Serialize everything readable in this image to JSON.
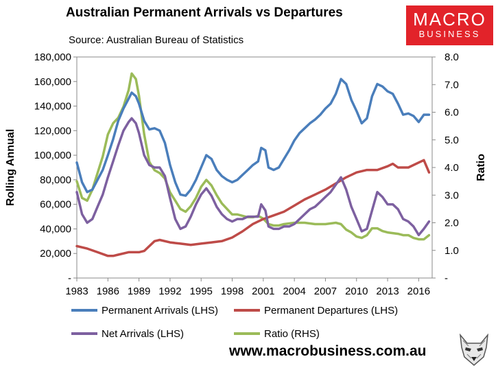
{
  "header": {
    "title": "Australian Permanent Arrivals vs Departures",
    "subtitle": "Source: Australian Bureau of Statistics"
  },
  "logo": {
    "line1": "MACRO",
    "line2": "BUSINESS",
    "color": "#e2232a"
  },
  "footer": {
    "url": "www.macrobusiness.com.au",
    "wolf_icon": "wolf-head-icon"
  },
  "chart_data": {
    "type": "line",
    "title": "Australian Permanent Arrivals vs Departures",
    "ylabel": "Rolling Annual",
    "y2label": "Ratio",
    "xlim": [
      1983,
      2017.3
    ],
    "ylim": [
      0,
      180000
    ],
    "y2lim": [
      0,
      8
    ],
    "x_ticks": [
      "1983",
      "1986",
      "1989",
      "1992",
      "1995",
      "1998",
      "2001",
      "2004",
      "2007",
      "2010",
      "2013",
      "2016"
    ],
    "y_ticks": [
      "-",
      "20,000",
      "40,000",
      "60,000",
      "80,000",
      "100,000",
      "120,000",
      "140,000",
      "160,000",
      "180,000"
    ],
    "y2_ticks": [
      "-",
      "1.0",
      "2.0",
      "3.0",
      "4.0",
      "5.0",
      "6.0",
      "7.0",
      "8.0"
    ],
    "grid": false,
    "legend_position": "bottom",
    "series": [
      {
        "name": "Permanent Arrivals (LHS)",
        "axis": "left",
        "color": "#4a7ebb",
        "x": [
          1983.0,
          1983.5,
          1984.0,
          1984.5,
          1985.0,
          1985.5,
          1986.0,
          1986.5,
          1987.0,
          1987.5,
          1988.0,
          1988.3,
          1988.7,
          1989.0,
          1989.5,
          1990.0,
          1990.5,
          1991.0,
          1991.5,
          1992.0,
          1992.5,
          1993.0,
          1993.5,
          1994.0,
          1994.5,
          1995.0,
          1995.5,
          1996.0,
          1996.5,
          1997.0,
          1997.5,
          1998.0,
          1998.5,
          1999.0,
          1999.5,
          2000.0,
          2000.5,
          2000.8,
          2001.2,
          2001.5,
          2002.0,
          2002.5,
          2003.0,
          2003.5,
          2004.0,
          2004.5,
          2005.0,
          2005.5,
          2006.0,
          2006.5,
          2007.0,
          2007.5,
          2008.0,
          2008.5,
          2009.0,
          2009.5,
          2010.0,
          2010.5,
          2011.0,
          2011.5,
          2012.0,
          2012.5,
          2013.0,
          2013.5,
          2014.0,
          2014.5,
          2015.0,
          2015.5,
          2016.0,
          2016.5,
          2017.0
        ],
        "values": [
          94000,
          78000,
          70000,
          72000,
          80000,
          88000,
          100000,
          113000,
          128000,
          138000,
          146000,
          151000,
          148000,
          142000,
          128000,
          121000,
          122000,
          120000,
          110000,
          92000,
          78000,
          68000,
          67000,
          72000,
          80000,
          90000,
          100000,
          97000,
          88000,
          83000,
          80000,
          78000,
          80000,
          84000,
          88000,
          92000,
          95000,
          106000,
          104000,
          90000,
          88000,
          90000,
          97000,
          104000,
          112000,
          118000,
          122000,
          126000,
          129000,
          133000,
          138000,
          142000,
          150000,
          162000,
          158000,
          145000,
          136000,
          126000,
          130000,
          148000,
          158000,
          156000,
          152000,
          150000,
          142000,
          133000,
          134000,
          132000,
          127000,
          133000,
          133000
        ]
      },
      {
        "name": "Permanent Departures (LHS)",
        "axis": "left",
        "color": "#be4b48",
        "x": [
          1983.0,
          1984.0,
          1985.0,
          1986.0,
          1986.5,
          1987.0,
          1988.0,
          1989.0,
          1989.5,
          1990.0,
          1990.5,
          1991.0,
          1992.0,
          1993.0,
          1994.0,
          1995.0,
          1996.0,
          1997.0,
          1998.0,
          1999.0,
          2000.0,
          2001.0,
          2002.0,
          2003.0,
          2004.0,
          2005.0,
          2006.0,
          2007.0,
          2008.0,
          2009.0,
          2010.0,
          2011.0,
          2012.0,
          2013.0,
          2013.5,
          2014.0,
          2015.0,
          2016.0,
          2016.5,
          2017.0
        ],
        "values": [
          26000,
          24000,
          21000,
          18000,
          18000,
          19000,
          21000,
          21000,
          22000,
          26000,
          30000,
          31000,
          29000,
          28000,
          27000,
          28000,
          29000,
          30000,
          33000,
          38000,
          44000,
          48000,
          51000,
          54000,
          59000,
          64000,
          68000,
          72000,
          77000,
          82000,
          86000,
          88000,
          88000,
          91000,
          93000,
          90000,
          90000,
          94000,
          96000,
          86000
        ]
      },
      {
        "name": "Net Arrivals (LHS)",
        "axis": "left",
        "color": "#7d60a0",
        "x": [
          1983.0,
          1983.5,
          1984.0,
          1984.5,
          1985.0,
          1985.5,
          1986.0,
          1986.5,
          1987.0,
          1987.5,
          1988.0,
          1988.3,
          1988.7,
          1989.0,
          1989.5,
          1990.0,
          1990.5,
          1991.0,
          1991.5,
          1992.0,
          1992.5,
          1993.0,
          1993.5,
          1994.0,
          1994.5,
          1995.0,
          1995.5,
          1996.0,
          1996.5,
          1997.0,
          1997.5,
          1998.0,
          1998.5,
          1999.0,
          1999.5,
          2000.0,
          2000.5,
          2000.8,
          2001.2,
          2001.5,
          2002.0,
          2002.5,
          2003.0,
          2003.5,
          2004.0,
          2004.5,
          2005.0,
          2005.5,
          2006.0,
          2006.5,
          2007.0,
          2007.5,
          2008.0,
          2008.5,
          2009.0,
          2009.5,
          2010.0,
          2010.5,
          2011.0,
          2011.5,
          2012.0,
          2012.5,
          2013.0,
          2013.5,
          2014.0,
          2014.5,
          2015.0,
          2015.5,
          2016.0,
          2016.5,
          2017.0
        ],
        "values": [
          70000,
          52000,
          45000,
          48000,
          58000,
          68000,
          82000,
          95000,
          108000,
          120000,
          127000,
          130000,
          126000,
          118000,
          100000,
          92000,
          90000,
          90000,
          83000,
          65000,
          48000,
          40000,
          42000,
          50000,
          60000,
          68000,
          73000,
          67000,
          58000,
          52000,
          48000,
          46000,
          48000,
          48000,
          50000,
          50000,
          50000,
          60000,
          55000,
          42000,
          40000,
          40000,
          42000,
          42000,
          44000,
          48000,
          52000,
          56000,
          58000,
          62000,
          66000,
          70000,
          76000,
          82000,
          72000,
          58000,
          48000,
          38000,
          40000,
          55000,
          70000,
          66000,
          60000,
          60000,
          56000,
          48000,
          46000,
          42000,
          35000,
          40000,
          46000
        ]
      },
      {
        "name": "Ratio (RHS)",
        "axis": "right",
        "color": "#9bbb59",
        "x": [
          1983.0,
          1983.5,
          1984.0,
          1984.5,
          1985.0,
          1985.5,
          1986.0,
          1986.5,
          1987.0,
          1987.5,
          1988.0,
          1988.3,
          1988.7,
          1989.0,
          1989.5,
          1990.0,
          1990.5,
          1991.0,
          1991.5,
          1992.0,
          1992.5,
          1993.0,
          1993.5,
          1994.0,
          1994.5,
          1995.0,
          1995.5,
          1996.0,
          1996.5,
          1997.0,
          1997.5,
          1998.0,
          1998.5,
          1999.0,
          1999.5,
          2000.0,
          2000.5,
          2001.0,
          2001.5,
          2002.0,
          2002.5,
          2003.0,
          2004.0,
          2005.0,
          2006.0,
          2007.0,
          2008.0,
          2008.5,
          2009.0,
          2009.5,
          2010.0,
          2010.5,
          2011.0,
          2011.5,
          2012.0,
          2012.5,
          2013.0,
          2014.0,
          2014.5,
          2015.0,
          2015.5,
          2016.0,
          2016.5,
          2017.0
        ],
        "values": [
          3.5,
          2.9,
          2.8,
          3.2,
          3.8,
          4.4,
          5.2,
          5.6,
          5.8,
          6.2,
          6.8,
          7.4,
          7.2,
          6.6,
          5.2,
          4.2,
          3.9,
          3.8,
          3.6,
          3.1,
          2.8,
          2.5,
          2.4,
          2.6,
          2.9,
          3.3,
          3.55,
          3.35,
          3.0,
          2.7,
          2.5,
          2.3,
          2.3,
          2.25,
          2.2,
          2.2,
          2.25,
          2.15,
          1.95,
          1.9,
          1.9,
          1.95,
          2.0,
          2.0,
          1.95,
          1.95,
          2.0,
          1.95,
          1.75,
          1.65,
          1.5,
          1.45,
          1.55,
          1.8,
          1.8,
          1.7,
          1.65,
          1.6,
          1.55,
          1.55,
          1.45,
          1.4,
          1.4,
          1.55
        ]
      }
    ]
  }
}
